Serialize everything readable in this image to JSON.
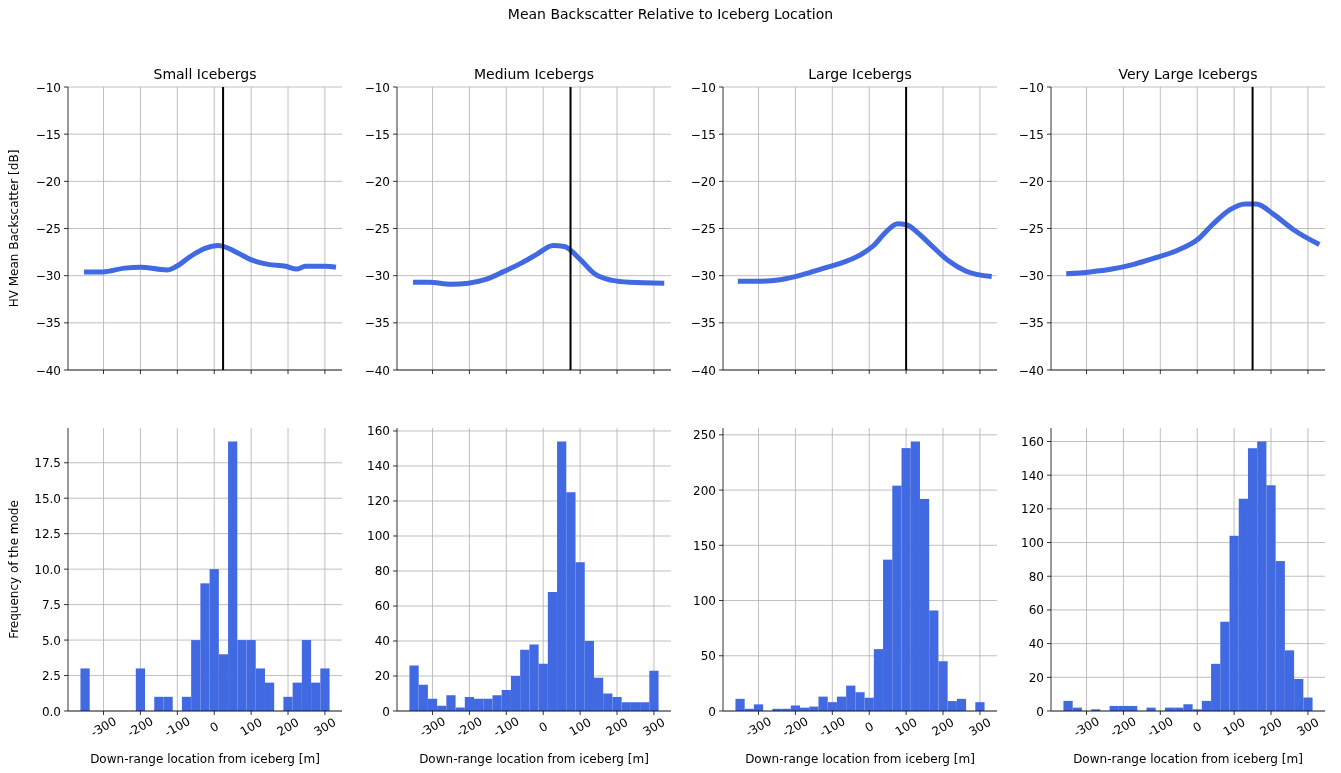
{
  "chart_data": [
    {
      "type": "line",
      "title": "Small Icebergs",
      "ylabel": "HV Mean Backscatter [dB]",
      "annotations": [
        "Mean Backscatter Relative to Iceberg Location"
      ],
      "series": [
        {
          "color": "#4169e1",
          "x": [
            -353,
            -302,
            -243,
            -200,
            -128,
            -102,
            -66,
            -25,
            11,
            24,
            64,
            99,
            146,
            194,
            223,
            247,
            300,
            330
          ],
          "values": [
            -29.6,
            -29.6,
            -29.2,
            -29.1,
            -29.4,
            -29.0,
            -28.0,
            -27.1,
            -26.8,
            -26.9,
            -27.6,
            -28.3,
            -28.8,
            -29.0,
            -29.3,
            -29.0,
            -29.0,
            -29.1
          ]
        }
      ],
      "xlim": [
        -396.25,
        346.25
      ],
      "ylim": [
        -40,
        -10
      ],
      "xticks": [
        -300,
        -200,
        -100,
        0,
        100,
        200,
        300
      ],
      "yticks": [
        {
          "value": -40,
          "label": "−40"
        },
        {
          "value": -35,
          "label": "−35"
        },
        {
          "value": -30,
          "label": "−30"
        },
        {
          "value": -25,
          "label": "−25"
        },
        {
          "value": -20,
          "label": "−20"
        },
        {
          "value": -15,
          "label": "−15"
        },
        {
          "value": -10,
          "label": "−10"
        }
      ],
      "grid": true,
      "tick_labels": "y",
      "ref_lines": [
        {
          "axis": "x",
          "value": 24,
          "color": "#000000"
        }
      ]
    },
    {
      "type": "line",
      "title": "Medium Icebergs",
      "series": [
        {
          "color": "#4169e1",
          "x": [
            -353,
            -309,
            -250,
            -203,
            -156,
            -109,
            -61,
            -20,
            27,
            57,
            98,
            139,
            187,
            234,
            328
          ],
          "values": [
            -30.7,
            -30.7,
            -30.9,
            -30.8,
            -30.4,
            -29.6,
            -28.7,
            -27.8,
            -26.8,
            -26.9,
            -28.2,
            -29.8,
            -30.5,
            -30.7,
            -30.8
          ]
        }
      ],
      "xlim": [
        -396.25,
        346.25
      ],
      "ylim": [
        -40,
        -10
      ],
      "xticks": [
        -300,
        -200,
        -100,
        0,
        100,
        200,
        300
      ],
      "yticks": [
        {
          "value": -40,
          "label": "−40"
        },
        {
          "value": -35,
          "label": "−35"
        },
        {
          "value": -30,
          "label": "−30"
        },
        {
          "value": -25,
          "label": "−25"
        },
        {
          "value": -20,
          "label": "−20"
        },
        {
          "value": -15,
          "label": "−15"
        },
        {
          "value": -10,
          "label": "−10"
        }
      ],
      "grid": true,
      "tick_labels": "y",
      "ref_lines": [
        {
          "axis": "x",
          "value": 74,
          "color": "#000000"
        }
      ]
    },
    {
      "type": "line",
      "title": "Large Icebergs",
      "series": [
        {
          "color": "#4169e1",
          "x": [
            -356,
            -297,
            -237,
            -190,
            -131,
            -71,
            -24,
            12,
            47,
            77,
            101,
            130,
            166,
            214,
            261,
            332
          ],
          "values": [
            -30.6,
            -30.6,
            -30.4,
            -30.0,
            -29.3,
            -28.6,
            -27.8,
            -26.8,
            -25.3,
            -24.5,
            -24.6,
            -25.4,
            -26.7,
            -28.4,
            -29.5,
            -30.1
          ]
        }
      ],
      "xlim": [
        -396.25,
        346.25
      ],
      "ylim": [
        -40,
        -10
      ],
      "xticks": [
        -300,
        -200,
        -100,
        0,
        100,
        200,
        300
      ],
      "yticks": [
        {
          "value": -40,
          "label": "−40"
        },
        {
          "value": -35,
          "label": "−35"
        },
        {
          "value": -30,
          "label": "−30"
        },
        {
          "value": -25,
          "label": "−25"
        },
        {
          "value": -20,
          "label": "−20"
        },
        {
          "value": -15,
          "label": "−15"
        },
        {
          "value": -10,
          "label": "−10"
        }
      ],
      "grid": true,
      "tick_labels": "y",
      "ref_lines": [
        {
          "axis": "x",
          "value": 100,
          "color": "#000000"
        }
      ]
    },
    {
      "type": "line",
      "title": "Very Large Icebergs",
      "series": [
        {
          "color": "#4169e1",
          "x": [
            -355,
            -290,
            -231,
            -172,
            -112,
            -53,
            0,
            41,
            89,
            130,
            160,
            207,
            260,
            331
          ],
          "values": [
            -29.8,
            -29.6,
            -29.3,
            -28.8,
            -28.1,
            -27.3,
            -26.2,
            -24.6,
            -23.0,
            -22.4,
            -22.4,
            -23.5,
            -25.1,
            -26.7
          ]
        }
      ],
      "xlim": [
        -396.25,
        346.25
      ],
      "ylim": [
        -40,
        -10
      ],
      "xticks": [
        -300,
        -200,
        -100,
        0,
        100,
        200,
        300
      ],
      "yticks": [
        {
          "value": -40,
          "label": "−40"
        },
        {
          "value": -35,
          "label": "−35"
        },
        {
          "value": -30,
          "label": "−30"
        },
        {
          "value": -25,
          "label": "−25"
        },
        {
          "value": -20,
          "label": "−20"
        },
        {
          "value": -15,
          "label": "−15"
        },
        {
          "value": -10,
          "label": "−10"
        }
      ],
      "grid": true,
      "tick_labels": "y",
      "ref_lines": [
        {
          "axis": "x",
          "value": 150,
          "color": "#000000"
        }
      ]
    },
    {
      "type": "histogram",
      "xlabel": "Down-range location from iceberg [m]",
      "ylabel": "Frequency of the mode",
      "color": "#4169e1",
      "bins": [
        -362.5,
        -337.5,
        -312.5,
        -287.5,
        -262.5,
        -237.5,
        -212.5,
        -187.5,
        -162.5,
        -137.5,
        -112.5,
        -87.5,
        -62.5,
        -37.5,
        -12.5,
        12.5,
        37.5,
        62.5,
        87.5,
        112.5,
        137.5,
        162.5,
        187.5,
        212.5,
        237.5,
        262.5,
        287.5,
        312.5
      ],
      "values": [
        3,
        0,
        0,
        0,
        0,
        0,
        3,
        0,
        1,
        1,
        0,
        1,
        5,
        9,
        10,
        4,
        19,
        5,
        5,
        3,
        2,
        0,
        1,
        2,
        5,
        2,
        3
      ],
      "xlim": [
        -396.25,
        346.25
      ],
      "ylim": [
        0,
        19.95
      ],
      "xticks": [
        -300,
        -200,
        -100,
        0,
        100,
        200,
        300
      ],
      "yticks": [
        {
          "value": 0,
          "label": "0.0"
        },
        {
          "value": 2.5,
          "label": "2.5"
        },
        {
          "value": 5,
          "label": "5.0"
        },
        {
          "value": 7.5,
          "label": "7.5"
        },
        {
          "value": 10,
          "label": "10.0"
        },
        {
          "value": 12.5,
          "label": "12.5"
        },
        {
          "value": 15,
          "label": "15.0"
        },
        {
          "value": 17.5,
          "label": "17.5"
        }
      ],
      "grid": true
    },
    {
      "type": "histogram",
      "xlabel": "Down-range location from iceberg [m]",
      "color": "#4169e1",
      "bins": [
        -362.5,
        -337.5,
        -312.5,
        -287.5,
        -262.5,
        -237.5,
        -212.5,
        -187.5,
        -162.5,
        -137.5,
        -112.5,
        -87.5,
        -62.5,
        -37.5,
        -12.5,
        12.5,
        37.5,
        62.5,
        87.5,
        112.5,
        137.5,
        162.5,
        187.5,
        212.5,
        237.5,
        262.5,
        287.5,
        312.5
      ],
      "values": [
        26,
        15,
        7,
        3,
        9,
        2,
        8,
        7,
        7,
        9,
        12,
        20,
        35,
        38,
        27,
        68,
        154,
        125,
        85,
        40,
        19,
        10,
        8,
        5,
        5,
        5,
        23
      ],
      "xlim": [
        -396.25,
        346.25
      ],
      "ylim": [
        0,
        161.7
      ],
      "xticks": [
        -300,
        -200,
        -100,
        0,
        100,
        200,
        300
      ],
      "yticks": [
        0,
        20,
        40,
        60,
        80,
        100,
        120,
        140,
        160
      ],
      "grid": true
    },
    {
      "type": "histogram",
      "xlabel": "Down-range location from iceberg [m]",
      "color": "#4169e1",
      "bins": [
        -362.5,
        -337.5,
        -312.5,
        -287.5,
        -262.5,
        -237.5,
        -212.5,
        -187.5,
        -162.5,
        -137.5,
        -112.5,
        -87.5,
        -62.5,
        -37.5,
        -12.5,
        12.5,
        37.5,
        62.5,
        87.5,
        112.5,
        137.5,
        162.5,
        187.5,
        212.5,
        237.5,
        262.5,
        287.5,
        312.5
      ],
      "values": [
        11,
        2,
        6,
        0,
        2,
        2,
        5,
        3,
        4,
        13,
        8,
        13,
        23,
        17,
        12,
        56,
        137,
        204,
        238,
        244,
        192,
        91,
        45,
        9,
        11,
        0,
        8
      ],
      "xlim": [
        -396.25,
        346.25
      ],
      "ylim": [
        0,
        256.2
      ],
      "xticks": [
        -300,
        -200,
        -100,
        0,
        100,
        200,
        300
      ],
      "yticks": [
        0,
        50,
        100,
        150,
        200,
        250
      ],
      "grid": true
    },
    {
      "type": "histogram",
      "xlabel": "Down-range location from iceberg [m]",
      "color": "#4169e1",
      "bins": [
        -362.5,
        -337.5,
        -312.5,
        -287.5,
        -262.5,
        -237.5,
        -212.5,
        -187.5,
        -162.5,
        -137.5,
        -112.5,
        -87.5,
        -62.5,
        -37.5,
        -12.5,
        12.5,
        37.5,
        62.5,
        87.5,
        112.5,
        137.5,
        162.5,
        187.5,
        212.5,
        237.5,
        262.5,
        287.5,
        312.5
      ],
      "values": [
        6,
        2,
        0,
        1,
        0,
        3,
        3,
        3,
        0,
        2,
        0,
        2,
        2,
        4,
        1,
        6,
        28,
        53,
        104,
        126,
        156,
        160,
        134,
        89,
        36,
        19,
        8
      ],
      "xlim": [
        -396.25,
        346.25
      ],
      "ylim": [
        0,
        168
      ],
      "xticks": [
        -300,
        -200,
        -100,
        0,
        100,
        200,
        300
      ],
      "yticks": [
        0,
        20,
        40,
        60,
        80,
        100,
        120,
        140,
        160
      ],
      "grid": true
    }
  ]
}
